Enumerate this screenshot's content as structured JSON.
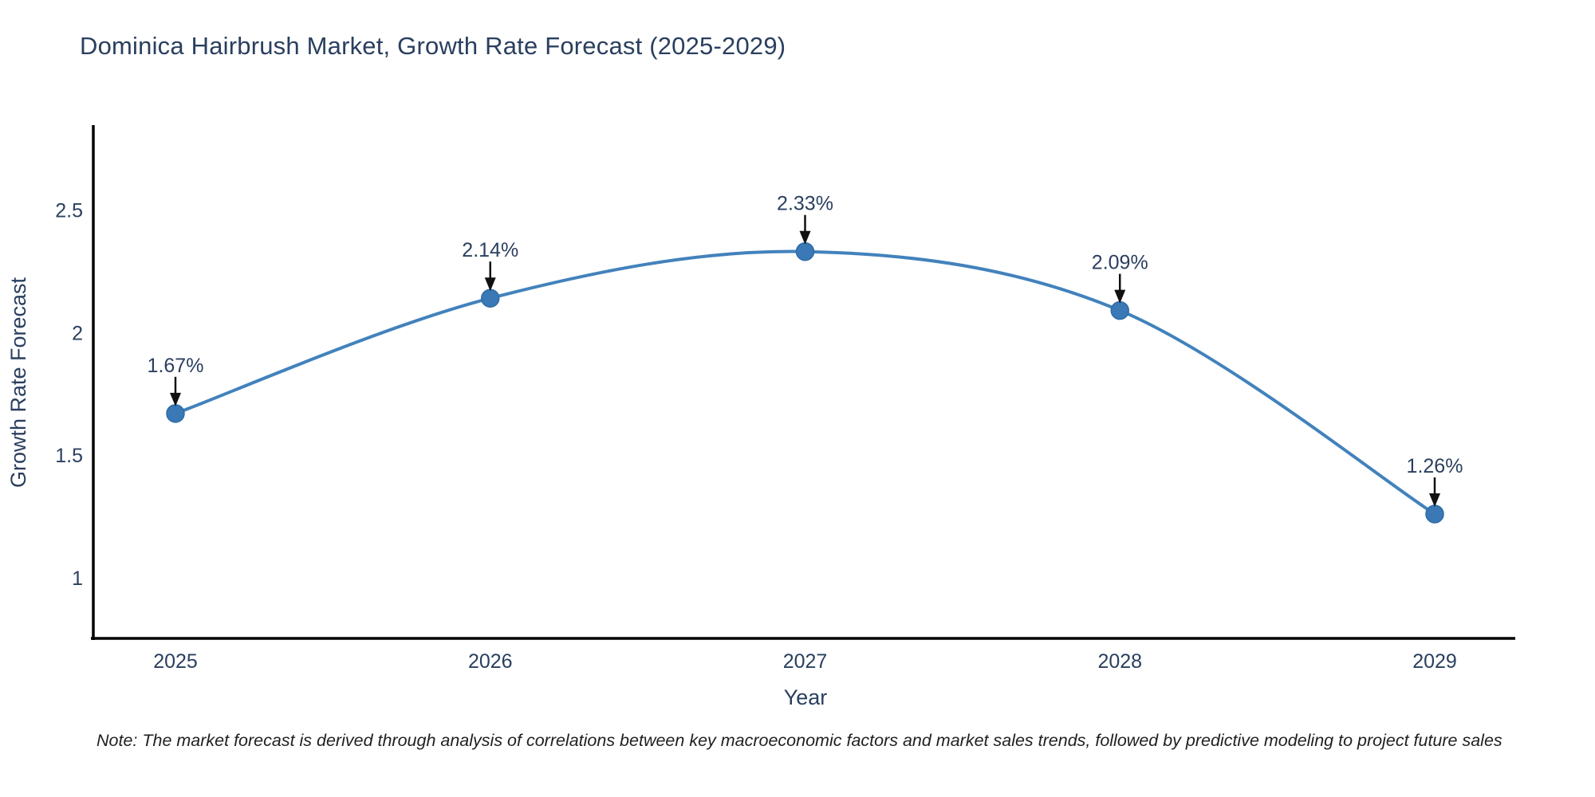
{
  "chart": {
    "title": "Dominica Hairbrush Market, Growth Rate Forecast (2025-2029)",
    "note": "Note: The market forecast is derived through analysis of correlations between key macroeconomic factors and market sales trends, followed by predictive modeling to project future sales"
  },
  "chart_data": {
    "type": "line",
    "line_shape": "spline",
    "title": "Dominica Hairbrush Market, Growth Rate Forecast (2025-2029)",
    "xlabel": "Year",
    "ylabel": "Growth Rate Forecast",
    "x": [
      2025,
      2026,
      2027,
      2028,
      2029
    ],
    "y": [
      1.67,
      2.14,
      2.33,
      2.09,
      1.26
    ],
    "point_labels": [
      "1.67%",
      "2.14%",
      "2.33%",
      "2.09%",
      "1.26%"
    ],
    "xticks": [
      "2025",
      "2026",
      "2027",
      "2028",
      "2029"
    ],
    "yticks": [
      1,
      1.5,
      2,
      2.5
    ],
    "ytick_labels": [
      "1",
      "1.5",
      "2",
      "2.5"
    ],
    "ylim": [
      0.75,
      2.84
    ],
    "grid": false,
    "legend": false,
    "colors": {
      "line": "#4282bc",
      "marker_fill": "#3a79b6",
      "marker_edge": "#2f6ba6",
      "axis_line": "#000000",
      "text": "#2a3f5f",
      "arrow": "#111111"
    }
  }
}
